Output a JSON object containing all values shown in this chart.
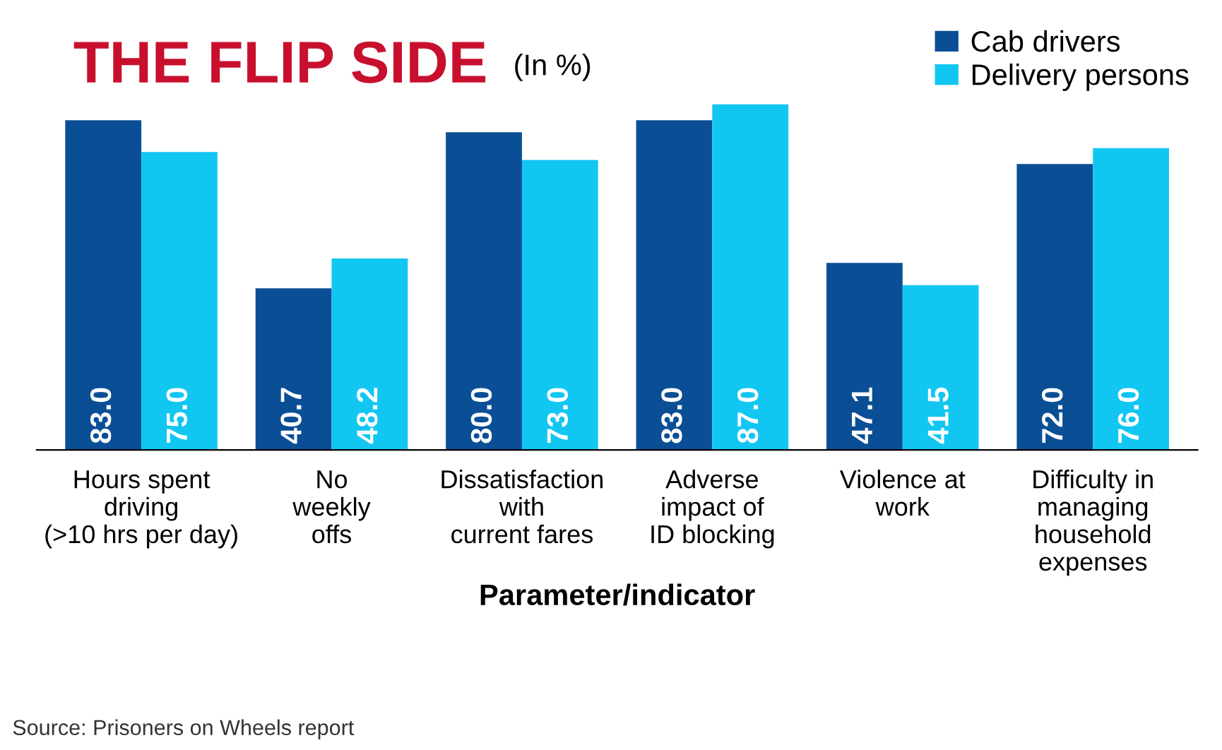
{
  "chart_data": {
    "type": "bar",
    "title": "THE FLIP SIDE",
    "subtitle": "(In %)",
    "xlabel": "Parameter/indicator",
    "categories": [
      "Hours spent\ndriving\n(>10 hrs per day)",
      "No\nweekly\noffs",
      "Dissatisfaction\nwith\ncurrent fares",
      "Adverse\nimpact of\nID blocking",
      "Violence at\nwork",
      "Difficulty in\nmanaging\nhousehold\nexpenses"
    ],
    "series": [
      {
        "name": "Cab drivers",
        "color": "#0a4f96",
        "values": [
          83.0,
          40.7,
          80.0,
          83.0,
          47.1,
          72.0
        ],
        "value_labels": [
          "83.0",
          "40.7",
          "80.0",
          "83.0",
          "47.1",
          "72.0"
        ]
      },
      {
        "name": "Delivery persons",
        "color": "#12c6f2",
        "values": [
          75.0,
          48.2,
          73.0,
          87.0,
          41.5,
          76.0
        ],
        "value_labels": [
          "75.0",
          "48.2",
          "73.0",
          "87.0",
          "41.5",
          "76.0"
        ]
      }
    ],
    "legend": "top right",
    "grid": false,
    "annotations": [
      "Source: Prisoners on Wheels report"
    ]
  }
}
